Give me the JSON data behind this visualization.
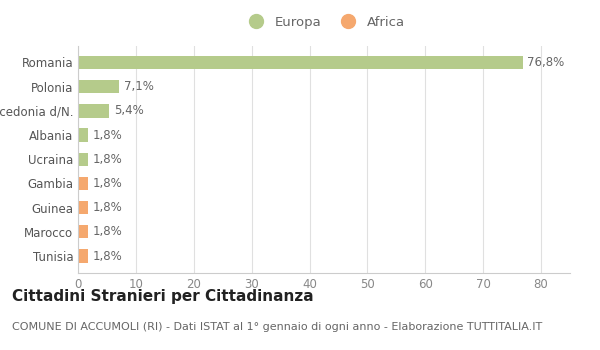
{
  "categories": [
    "Tunisia",
    "Marocco",
    "Guinea",
    "Gambia",
    "Ucraina",
    "Albania",
    "Macedonia d/N.",
    "Polonia",
    "Romania"
  ],
  "values": [
    1.8,
    1.8,
    1.8,
    1.8,
    1.8,
    1.8,
    5.4,
    7.1,
    76.8
  ],
  "labels": [
    "1,8%",
    "1,8%",
    "1,8%",
    "1,8%",
    "1,8%",
    "1,8%",
    "5,4%",
    "7,1%",
    "76,8%"
  ],
  "colors": [
    "#f5a86e",
    "#f5a86e",
    "#f5a86e",
    "#f5a86e",
    "#b5cb8b",
    "#b5cb8b",
    "#b5cb8b",
    "#b5cb8b",
    "#b5cb8b"
  ],
  "legend_europa_color": "#b5cb8b",
  "legend_africa_color": "#f5a86e",
  "title": "Cittadini Stranieri per Cittadinanza",
  "subtitle": "COMUNE DI ACCUMOLI (RI) - Dati ISTAT al 1° gennaio di ogni anno - Elaborazione TUTTITALIA.IT",
  "xlim": [
    0,
    85
  ],
  "xticks": [
    0,
    10,
    20,
    30,
    40,
    50,
    60,
    70,
    80
  ],
  "background_color": "#ffffff",
  "bar_height": 0.55,
  "title_fontsize": 11,
  "subtitle_fontsize": 8,
  "label_fontsize": 8.5,
  "tick_fontsize": 8.5,
  "legend_fontsize": 9.5,
  "ylabel_fontsize": 8.5
}
